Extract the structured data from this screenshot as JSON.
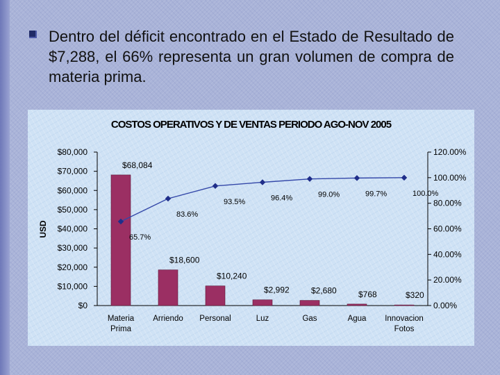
{
  "slide": {
    "bullet_text": "Dentro del déficit encontrado en el Estado de Resultado de $7,288, el 66% representa un gran volumen de compra de materia prima."
  },
  "colors": {
    "bar": "#9b2f63",
    "line": "#3347a8",
    "plot_bg": "#cfe2f5"
  },
  "chart_data": {
    "type": "bar",
    "title": "COSTOS OPERATIVOS Y DE VENTAS PERIODO AGO-NOV 2005",
    "xlabel": "",
    "ylabel": "USD",
    "y2label": "",
    "categories": [
      "Materia Prima",
      "Arriendo",
      "Personal",
      "Luz",
      "Gas",
      "Agua",
      "Innovacion Fotos"
    ],
    "series": [
      {
        "type": "bar",
        "axis": "left",
        "values": [
          68084,
          18600,
          10240,
          2992,
          2680,
          768,
          320
        ]
      },
      {
        "type": "line",
        "axis": "right",
        "values": [
          65.7,
          83.6,
          93.5,
          96.4,
          99.0,
          99.7,
          100.0
        ]
      }
    ],
    "bar_labels": [
      "$68,084",
      "$18,600",
      "$10,240",
      "$2,992",
      "$2,680",
      "$768",
      "$320"
    ],
    "line_labels": [
      "65.7%",
      "83.6%",
      "93.5%",
      "96.4%",
      "99.0%",
      "99.7%",
      "100.0%"
    ],
    "ylim": [
      0,
      80000
    ],
    "y2lim": [
      0,
      120
    ],
    "y_ticks": [
      0,
      10000,
      20000,
      30000,
      40000,
      50000,
      60000,
      70000,
      80000
    ],
    "y_tick_labels": [
      "$0",
      "$10,000",
      "$20,000",
      "$30,000",
      "$40,000",
      "$50,000",
      "$60,000",
      "$70,000",
      "$80,000"
    ],
    "y2_ticks": [
      0,
      20,
      40,
      60,
      80,
      100,
      120
    ],
    "y2_tick_labels": [
      "0.00%",
      "20.00%",
      "40.00%",
      "60.00%",
      "80.00%",
      "100.00%",
      "120.00%"
    ],
    "grid": false,
    "legend": "none"
  }
}
